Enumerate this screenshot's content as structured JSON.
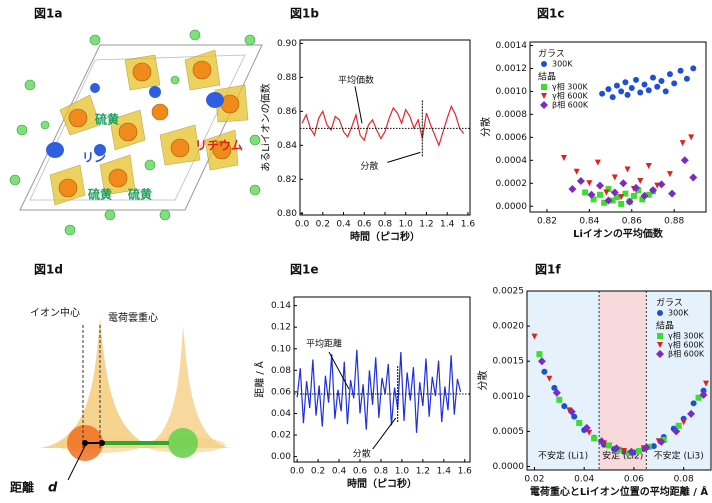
{
  "chart_data": [
    {
      "type": "line",
      "title": "図1b",
      "ylabel": "あるLiイオンの価数",
      "xlabel": "時間（ピコ秒）",
      "color": "#e8232a",
      "mean_line": 0.85,
      "annotations": [
        "平均価数",
        "分散"
      ],
      "x": [
        0,
        0.04,
        0.08,
        0.12,
        0.16,
        0.2,
        0.24,
        0.28,
        0.32,
        0.36,
        0.4,
        0.44,
        0.48,
        0.52,
        0.56,
        0.6,
        0.64,
        0.68,
        0.72,
        0.76,
        0.8,
        0.84,
        0.88,
        0.92,
        0.96,
        1,
        1.04,
        1.08,
        1.12,
        1.16,
        1.2,
        1.24,
        1.28,
        1.32,
        1.36,
        1.4,
        1.44,
        1.48,
        1.52,
        1.56
      ],
      "values": [
        0.853,
        0.858,
        0.85,
        0.846,
        0.856,
        0.86,
        0.852,
        0.849,
        0.857,
        0.855,
        0.848,
        0.845,
        0.851,
        0.858,
        0.846,
        0.843,
        0.852,
        0.855,
        0.849,
        0.844,
        0.848,
        0.856,
        0.862,
        0.859,
        0.853,
        0.861,
        0.857,
        0.85,
        0.855,
        0.844,
        0.859,
        0.852,
        0.846,
        0.84,
        0.848,
        0.856,
        0.863,
        0.858,
        0.85,
        0.847
      ],
      "xlim": [
        -0.02,
        1.62
      ],
      "ylim": [
        0.799,
        0.902
      ],
      "xticks": [
        {
          "value": 0,
          "label": "0.0"
        },
        0.2,
        0.4,
        0.6,
        0.8,
        {
          "value": 1,
          "label": "1.0"
        },
        1.2,
        1.4,
        1.6
      ],
      "yticks": [
        {
          "value": 0.8,
          "label": "0.80"
        },
        0.82,
        0.84,
        0.86,
        0.88,
        {
          "value": 0.9,
          "label": "0.90"
        }
      ]
    },
    {
      "type": "scatter",
      "title": "図1c",
      "ylabel": "分散",
      "xlabel": "Liイオンの平均価数",
      "xlim": [
        0.812,
        0.895
      ],
      "ylim": [
        -5e-05,
        0.00143
      ],
      "xticks": [
        0.82,
        0.84,
        0.86,
        0.88
      ],
      "yticks": [
        {
          "value": 0,
          "label": "0.0000"
        },
        0.0002,
        0.0004,
        0.0006,
        0.0008,
        {
          "value": 0.001,
          "label": "0.0010"
        },
        0.0012,
        0.0014
      ],
      "series": [
        {
          "name": "300K",
          "group": "ガラス",
          "color": "#1f4fd8",
          "marker": "circle",
          "x": [
            0.846,
            0.849,
            0.851,
            0.853,
            0.855,
            0.857,
            0.858,
            0.86,
            0.862,
            0.864,
            0.866,
            0.868,
            0.87,
            0.872,
            0.874,
            0.876,
            0.878,
            0.88,
            0.883,
            0.886,
            0.889
          ],
          "values": [
            0.00098,
            0.00102,
            0.00095,
            0.00105,
            0.001,
            0.00108,
            0.00097,
            0.00103,
            0.0011,
            0.00099,
            0.00106,
            0.00101,
            0.00112,
            0.00104,
            0.00109,
            0.001,
            0.00115,
            0.00107,
            0.00118,
            0.00111,
            0.0012
          ]
        },
        {
          "name": "γ相 300K",
          "group": "結晶",
          "color": "#3ddc2e",
          "marker": "square",
          "x": [
            0.838,
            0.842,
            0.845,
            0.847,
            0.849,
            0.851,
            0.853,
            0.855,
            0.857,
            0.859,
            0.861,
            0.863,
            0.865,
            0.868,
            0.87
          ],
          "values": [
            0.00012,
            6e-05,
            0.0001,
            3e-05,
            0.00015,
            5e-05,
            8e-05,
            2e-05,
            0.00011,
            4e-05,
            9e-05,
            0.00014,
            6e-05,
            0.0001,
            0.00013
          ]
        },
        {
          "name": "γ相 600K",
          "group": "結晶",
          "color": "#e0201c",
          "marker": "triangle",
          "x": [
            0.828,
            0.834,
            0.84,
            0.844,
            0.848,
            0.852,
            0.855,
            0.858,
            0.861,
            0.864,
            0.868,
            0.872,
            0.878,
            0.884,
            0.888
          ],
          "values": [
            0.00042,
            0.0003,
            0.0002,
            0.00038,
            0.00012,
            0.00025,
            8e-05,
            0.00032,
            0.00015,
            0.00022,
            0.00035,
            0.00018,
            0.00028,
            0.00055,
            0.0006
          ]
        },
        {
          "name": "β相 600K",
          "group": "結晶",
          "color": "#7a2bc4",
          "marker": "diamond",
          "x": [
            0.832,
            0.836,
            0.841,
            0.845,
            0.849,
            0.852,
            0.856,
            0.859,
            0.862,
            0.866,
            0.87,
            0.874,
            0.879,
            0.885,
            0.889
          ],
          "values": [
            0.00015,
            0.00022,
            0.0001,
            0.00018,
            5e-05,
            0.00012,
            0.0002,
            4e-05,
            0.00016,
            9e-05,
            0.00014,
            0.00019,
            0.00011,
            0.0004,
            0.00025
          ]
        }
      ]
    },
    {
      "type": "line",
      "title": "図1e",
      "ylabel": "距離 / Å",
      "xlabel": "時間（ピコ秒）",
      "color": "#1f2fe0",
      "mean_line": 0.058,
      "annotations": [
        "平均距離",
        "分散"
      ],
      "x": [
        0,
        0.03,
        0.06,
        0.09,
        0.12,
        0.15,
        0.18,
        0.21,
        0.24,
        0.27,
        0.3,
        0.33,
        0.36,
        0.39,
        0.42,
        0.45,
        0.48,
        0.51,
        0.54,
        0.57,
        0.6,
        0.63,
        0.66,
        0.69,
        0.72,
        0.75,
        0.78,
        0.81,
        0.84,
        0.87,
        0.9,
        0.93,
        0.96,
        0.99,
        1.02,
        1.05,
        1.08,
        1.11,
        1.14,
        1.17,
        1.2,
        1.23,
        1.26,
        1.29,
        1.32,
        1.35,
        1.38,
        1.41,
        1.44,
        1.47,
        1.5,
        1.53,
        1.56
      ],
      "values": [
        0.055,
        0.082,
        0.031,
        0.07,
        0.045,
        0.09,
        0.038,
        0.066,
        0.028,
        0.075,
        0.05,
        0.095,
        0.035,
        0.062,
        0.042,
        0.088,
        0.03,
        0.071,
        0.054,
        0.099,
        0.04,
        0.067,
        0.025,
        0.08,
        0.048,
        0.092,
        0.036,
        0.073,
        0.058,
        0.086,
        0.029,
        0.064,
        0.044,
        0.097,
        0.033,
        0.078,
        0.052,
        0.083,
        0.022,
        0.069,
        0.047,
        0.091,
        0.037,
        0.074,
        0.056,
        0.089,
        0.032,
        0.065,
        0.043,
        0.094,
        0.039,
        0.072,
        0.06
      ],
      "xlim": [
        -0.03,
        1.65
      ],
      "ylim": [
        -0.005,
        0.148
      ],
      "xticks": [
        {
          "value": 0,
          "label": "0.0"
        },
        0.2,
        0.4,
        0.6,
        0.8,
        {
          "value": 1,
          "label": "1.0"
        },
        1.2,
        1.4,
        1.6
      ],
      "yticks": [
        {
          "value": 0,
          "label": "0.00"
        },
        0.02,
        0.04,
        0.06,
        0.08,
        {
          "value": 0.1,
          "label": "0.10"
        },
        0.12,
        0.14
      ]
    },
    {
      "type": "scatter",
      "title": "図1f",
      "ylabel": "分散",
      "xlabel": "電荷重心とLiイオン位置の平均距離 / Å",
      "xlim": [
        0.017,
        0.091
      ],
      "ylim": [
        -5e-05,
        0.0025
      ],
      "xticks": [
        0.02,
        0.04,
        0.06,
        0.08
      ],
      "yticks": [
        {
          "value": 0,
          "label": "0.0000"
        },
        0.0005,
        {
          "value": 0.001,
          "label": "0.0010"
        },
        0.0015,
        {
          "value": 0.002,
          "label": "0.0020"
        },
        0.0025
      ],
      "regions": [
        {
          "label": "不安定 (Li1)",
          "from": 0.017,
          "to": 0.046,
          "color": "#e6f2fb"
        },
        {
          "label": "安定 (Li2)",
          "from": 0.046,
          "to": 0.065,
          "color": "#f8d9dc"
        },
        {
          "label": "不安定 (Li3)",
          "from": 0.065,
          "to": 0.091,
          "color": "#e6f2fb"
        }
      ],
      "series": [
        {
          "name": "300K",
          "group": "ガラス",
          "color": "#1f4fd8",
          "marker": "circle",
          "x": [
            0.024,
            0.028,
            0.032,
            0.036,
            0.04,
            0.044,
            0.048,
            0.052,
            0.056,
            0.06,
            0.064,
            0.068,
            0.072,
            0.076,
            0.08,
            0.084,
            0.088
          ],
          "values": [
            0.00135,
            0.00112,
            0.00086,
            0.00071,
            0.00052,
            0.00041,
            0.00031,
            0.00025,
            0.00021,
            0.0002,
            0.00025,
            0.00029,
            0.00042,
            0.00054,
            0.00068,
            0.0009,
            0.00108
          ]
        },
        {
          "name": "γ相 300K",
          "group": "結晶",
          "color": "#3ddc2e",
          "marker": "square",
          "x": [
            0.022,
            0.03,
            0.038,
            0.044,
            0.05,
            0.054,
            0.058,
            0.062,
            0.066,
            0.072,
            0.078,
            0.086
          ],
          "values": [
            0.0016,
            0.00095,
            0.00062,
            0.0004,
            0.0003,
            0.00024,
            0.00019,
            0.00022,
            0.00028,
            0.00038,
            0.00058,
            0.00098
          ]
        },
        {
          "name": "γ相 600K",
          "group": "結晶",
          "color": "#e0201c",
          "marker": "triangle",
          "x": [
            0.02,
            0.026,
            0.034,
            0.042,
            0.048,
            0.056,
            0.064,
            0.07,
            0.08,
            0.089
          ],
          "values": [
            0.00185,
            0.00125,
            0.0008,
            0.00048,
            0.00033,
            0.00022,
            0.00026,
            0.00036,
            0.00063,
            0.00118
          ]
        },
        {
          "name": "β相 600K",
          "group": "結晶",
          "color": "#7a2bc4",
          "marker": "diamond",
          "x": [
            0.023,
            0.029,
            0.035,
            0.041,
            0.047,
            0.053,
            0.059,
            0.065,
            0.071,
            0.077,
            0.083,
            0.088
          ],
          "values": [
            0.0015,
            0.00105,
            0.00078,
            0.00055,
            0.00036,
            0.00026,
            0.00021,
            0.00027,
            0.00035,
            0.0005,
            0.00075,
            0.00102
          ]
        }
      ]
    }
  ],
  "diagrams": {
    "a": {
      "title": "図1a",
      "labels": [
        "硫黄",
        "リン",
        "硫黄",
        "硫黄",
        "リチウム"
      ]
    },
    "d": {
      "title": "図1d",
      "labels": [
        "イオン中心",
        "電荷雲重心",
        "距離",
        "d"
      ]
    }
  }
}
